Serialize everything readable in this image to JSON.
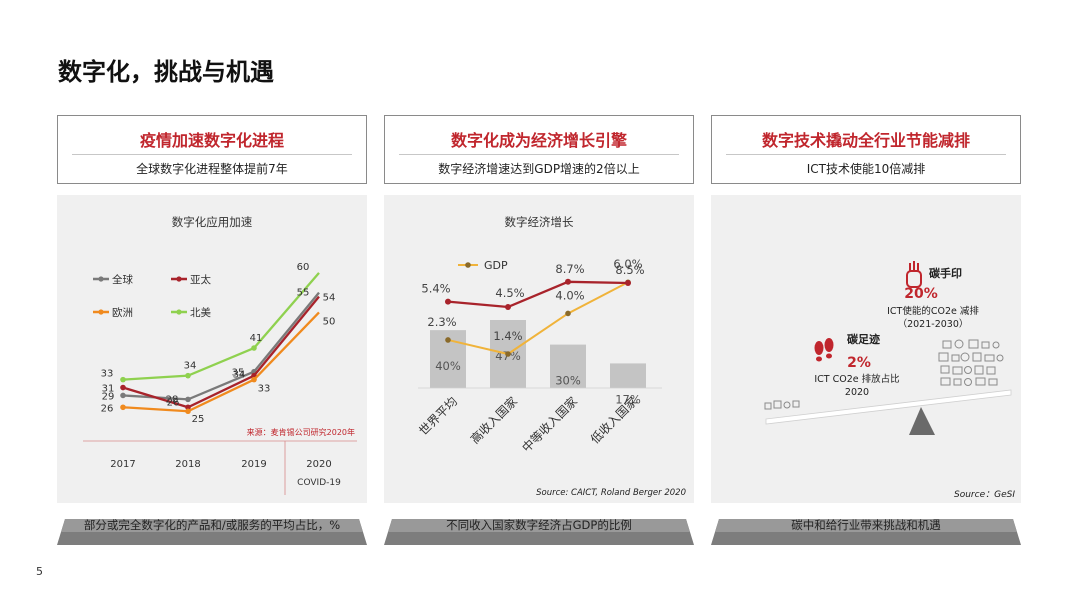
{
  "page": {
    "title": "数字化，挑战与机遇",
    "number": "5"
  },
  "panels": [
    {
      "title": "疫情加速数字化进程",
      "subtitle": "全球数字化进程整体提前7年",
      "footer": "部分或完全数字化的产品和/或服务的平均占比，%"
    },
    {
      "title": "数字化成为经济增长引擎",
      "subtitle": "数字经济增速达到GDP增速的2倍以上",
      "footer": "不同收入国家数字经济占GDP的比例"
    },
    {
      "title": "数字技术撬动全行业节能减排",
      "subtitle": "ICT技术使能10倍减排",
      "footer": "碳中和给行业带来挑战和机遇"
    }
  ],
  "colors": {
    "accent": "#c0262d",
    "grey_series": "#7a7a7a",
    "red_series": "#a8232b",
    "orange_series": "#f08a1e",
    "green_series": "#8fd14f",
    "bar": "#c4c4c4",
    "gdp_line": "#f0b33a"
  },
  "chart_data": [
    {
      "type": "line",
      "title": "数字化应用加速",
      "categories": [
        "2017",
        "2018",
        "2019",
        "2020"
      ],
      "annotation": "COVID-19",
      "source": "来源：麦肯锡公司研究2020年",
      "ylim": [
        20,
        62
      ],
      "series": [
        {
          "name": "全球",
          "color": "#7a7a7a",
          "values": [
            29,
            28,
            35,
            55
          ]
        },
        {
          "name": "亚太",
          "color": "#a8232b",
          "values": [
            31,
            26,
            34,
            54
          ]
        },
        {
          "name": "欧洲",
          "color": "#f08a1e",
          "values": [
            26,
            25,
            33,
            50
          ]
        },
        {
          "name": "北美",
          "color": "#8fd14f",
          "values": [
            33,
            34,
            41,
            60
          ]
        }
      ]
    },
    {
      "type": "bar",
      "title": "数字经济增长",
      "categories": [
        "世界平均",
        "高收入国家",
        "中等收入国家",
        "低收入国家"
      ],
      "bar_values": [
        "40%",
        "47%",
        "30%",
        "17%"
      ],
      "bar_values_num": [
        40,
        47,
        30,
        17
      ],
      "line_values": [
        "2.3%",
        "1.4%",
        "4.0%",
        "6.0%"
      ],
      "line_values_num": [
        2.3,
        1.4,
        4.0,
        6.0
      ],
      "line_legend": "GDP",
      "growth_values": [
        "5.4%",
        "4.5%",
        "8.7%",
        "8.5%"
      ],
      "growth_values_num": [
        5.4,
        4.5,
        8.7,
        8.5
      ],
      "source": "Source: CAICT, Roland Berger 2020"
    }
  ],
  "carbon": {
    "hand_label": "碳手印",
    "hand_pct": "20%",
    "hand_desc1": "ICT使能的CO2e 减排",
    "hand_desc2": "（2021-2030）",
    "foot_label": "碳足迹",
    "foot_pct": "2%",
    "foot_desc1": "ICT CO2e 排放占比",
    "foot_desc2": "2020",
    "source": "Source：GeSI",
    "hand_icon": "hand-icon",
    "foot_icon": "footprints-icon"
  }
}
